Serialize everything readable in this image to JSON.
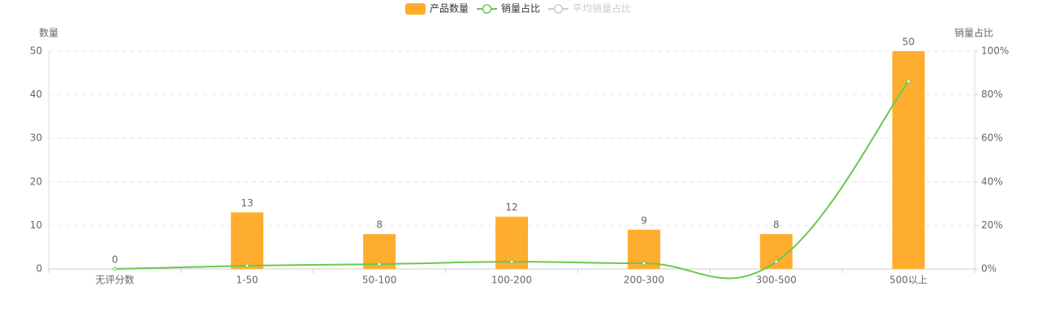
{
  "chart_data": {
    "type": "bar-line",
    "categories": [
      "无评分数",
      "1-50",
      "50-100",
      "100-200",
      "200-300",
      "300-500",
      "500以上"
    ],
    "series": [
      {
        "name": "产品数量",
        "color": "#ffad2e",
        "type": "bar",
        "values": [
          0,
          13,
          8,
          12,
          9,
          8,
          50
        ]
      },
      {
        "name": "销量占比",
        "color": "#6ac84f",
        "type": "line",
        "axis": "y2",
        "values": [
          0,
          1.5,
          2.2,
          3.3,
          2.6,
          3.3,
          86.2
        ]
      },
      {
        "name": "平均销量占比",
        "color": "#cccccc",
        "type": "line",
        "axis": "y2",
        "hidden": true
      }
    ],
    "ylabel": "数量",
    "y2label": "销量占比",
    "ylim": [
      0,
      50
    ],
    "yticks": [
      0,
      10,
      20,
      30,
      40,
      50
    ],
    "y2lim": [
      0,
      100
    ],
    "y2ticks": [
      {
        "value": 0,
        "label": "0%"
      },
      {
        "value": 20,
        "label": "20%"
      },
      {
        "value": 40,
        "label": "40%"
      },
      {
        "value": 60,
        "label": "60%"
      },
      {
        "value": 80,
        "label": "80%"
      },
      {
        "value": 100,
        "label": "100%"
      }
    ],
    "grid": true,
    "legend": "top"
  }
}
